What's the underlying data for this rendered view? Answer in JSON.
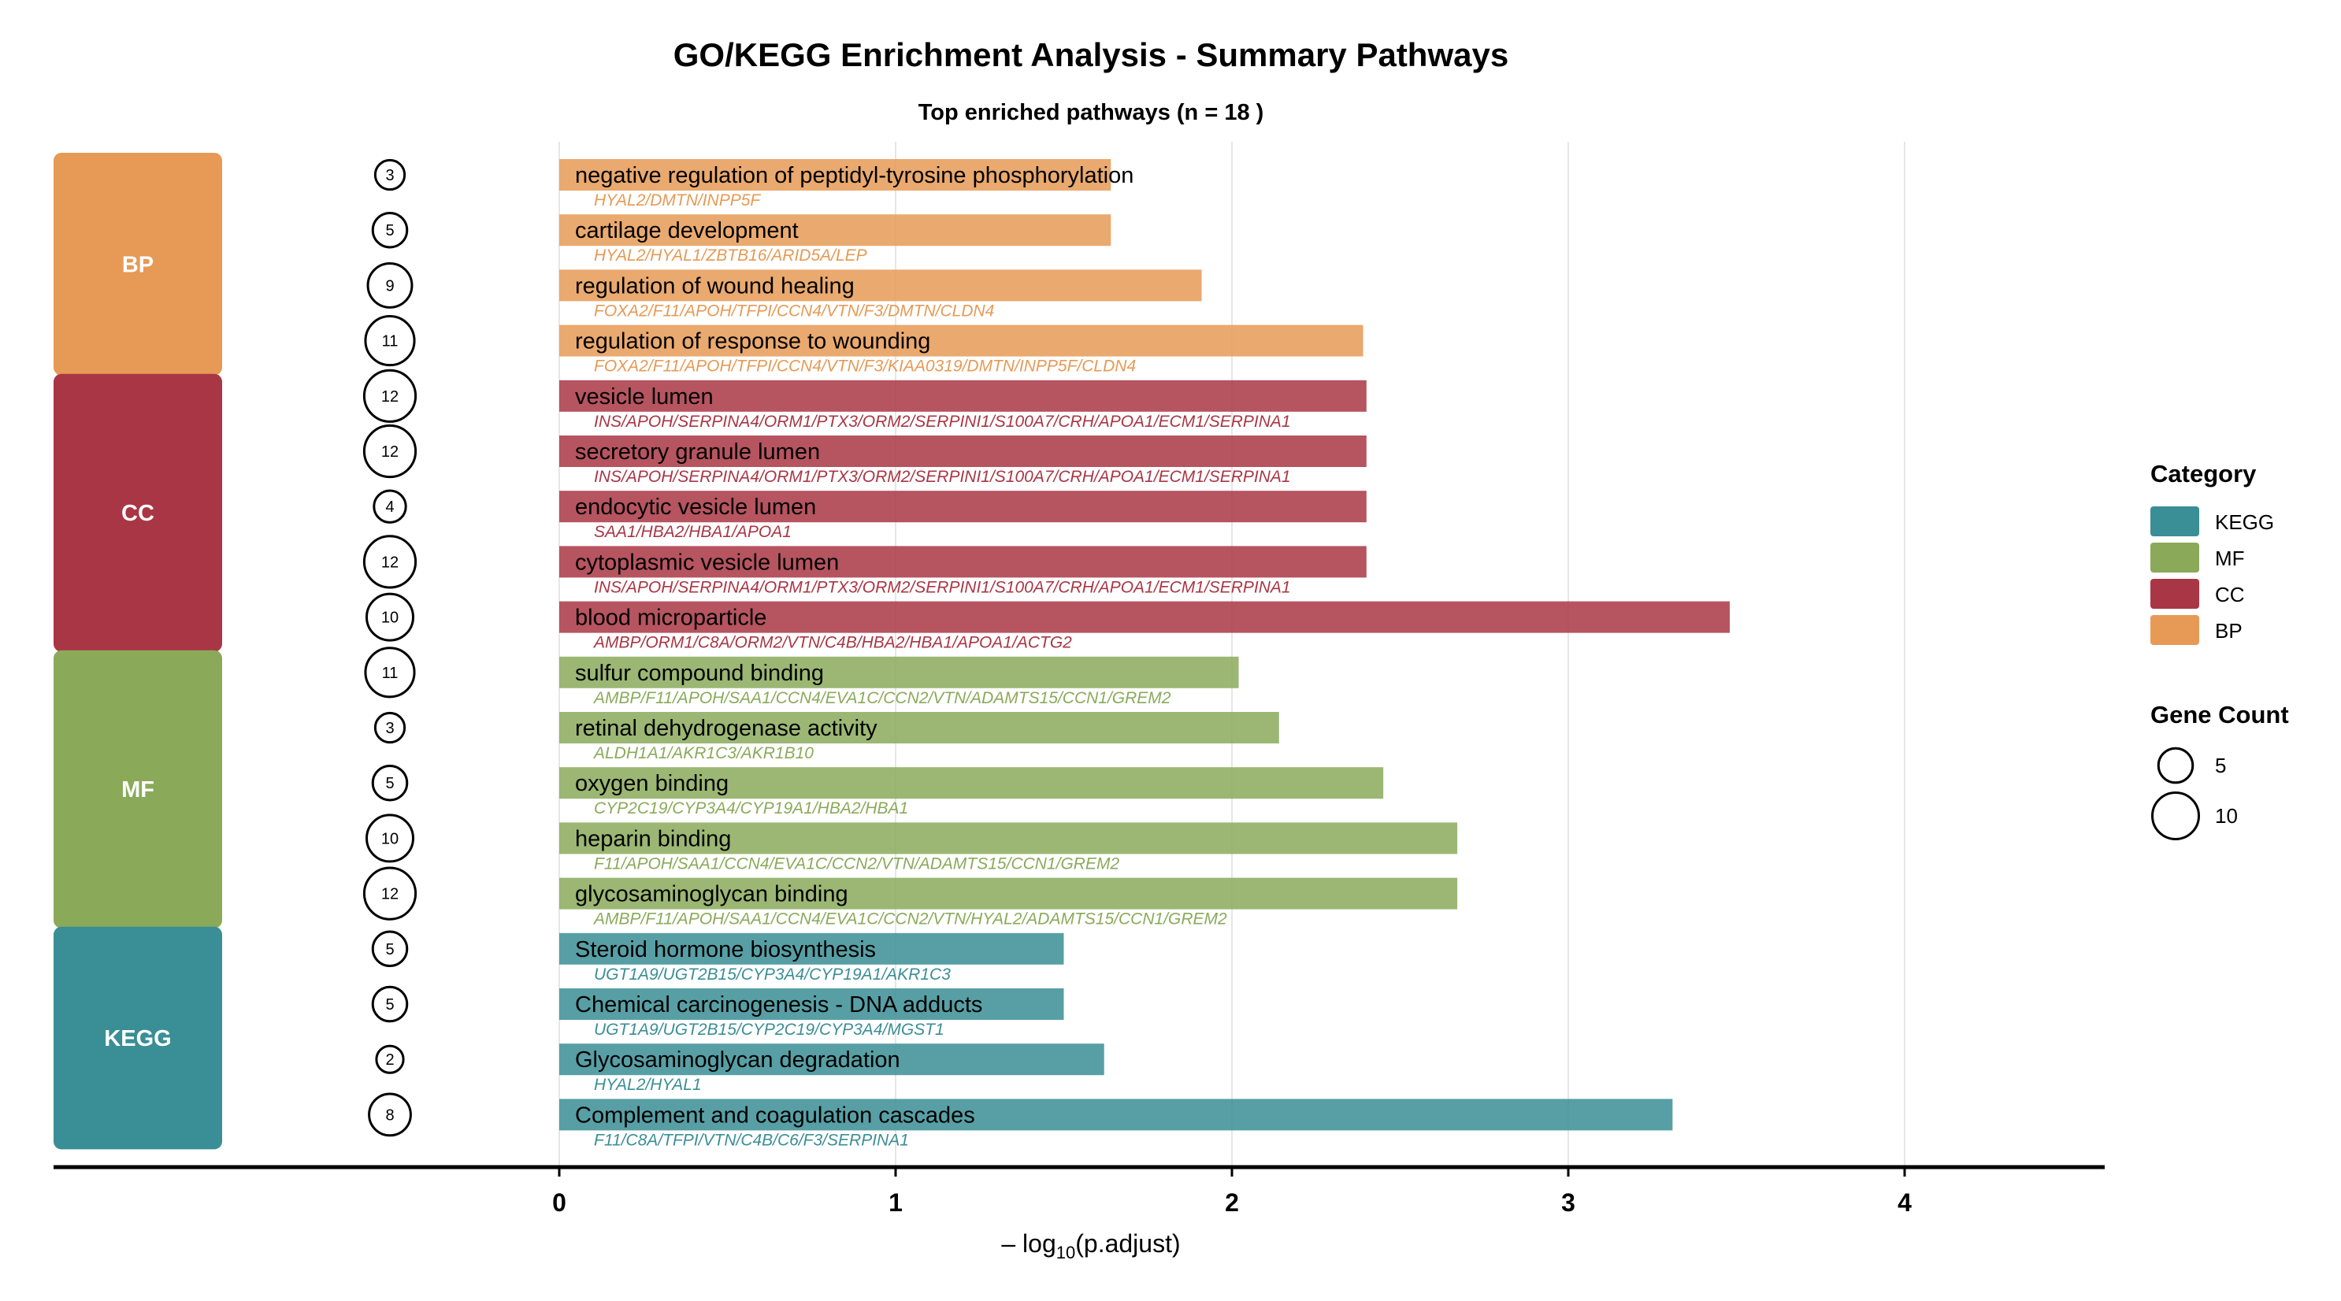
{
  "chart_data": {
    "type": "bar",
    "orientation": "horizontal",
    "title": "GO/KEGG Enrichment Analysis - Summary Pathways",
    "subtitle": "Top enriched pathways (n = 18 )",
    "xlabel_prefix": "– log",
    "xlabel_sub": "10",
    "xlabel_suffix": "(p.adjust)",
    "xlim": [
      0,
      4.5
    ],
    "xticks": [
      "0",
      "1",
      "2",
      "3",
      "4"
    ],
    "grid": true,
    "colors": {
      "KEGG": "#3a8e95",
      "MF": "#8aaa5a",
      "CC": "#a93644",
      "BP": "#e69a55"
    },
    "categories": [
      {
        "name": "BP"
      },
      {
        "name": "CC"
      },
      {
        "name": "MF"
      },
      {
        "name": "KEGG"
      }
    ],
    "pathways": [
      {
        "label": "negative regulation of peptidyl-tyrosine phosphorylation",
        "value": 1.64,
        "count": 3,
        "genes": "HYAL2/DMTN/INPP5F",
        "category": "BP"
      },
      {
        "label": "cartilage development",
        "value": 1.64,
        "count": 5,
        "genes": "HYAL2/HYAL1/ZBTB16/ARID5A/LEP",
        "category": "BP"
      },
      {
        "label": "regulation of wound healing",
        "value": 1.91,
        "count": 9,
        "genes": "FOXA2/F11/APOH/TFPI/CCN4/VTN/F3/DMTN/CLDN4",
        "category": "BP"
      },
      {
        "label": "regulation of response to wounding",
        "value": 2.39,
        "count": 11,
        "genes": "FOXA2/F11/APOH/TFPI/CCN4/VTN/F3/KIAA0319/DMTN/INPP5F/CLDN4",
        "category": "BP"
      },
      {
        "label": "vesicle lumen",
        "value": 2.4,
        "count": 12,
        "genes": "INS/APOH/SERPINA4/ORM1/PTX3/ORM2/SERPINI1/S100A7/CRH/APOA1/ECM1/SERPINA1",
        "category": "CC"
      },
      {
        "label": "secretory granule lumen",
        "value": 2.4,
        "count": 12,
        "genes": "INS/APOH/SERPINA4/ORM1/PTX3/ORM2/SERPINI1/S100A7/CRH/APOA1/ECM1/SERPINA1",
        "category": "CC"
      },
      {
        "label": "endocytic vesicle lumen",
        "value": 2.4,
        "count": 4,
        "genes": "SAA1/HBA2/HBA1/APOA1",
        "category": "CC"
      },
      {
        "label": "cytoplasmic vesicle lumen",
        "value": 2.4,
        "count": 12,
        "genes": "INS/APOH/SERPINA4/ORM1/PTX3/ORM2/SERPINI1/S100A7/CRH/APOA1/ECM1/SERPINA1",
        "category": "CC"
      },
      {
        "label": "blood microparticle",
        "value": 3.48,
        "count": 10,
        "genes": "AMBP/ORM1/C8A/ORM2/VTN/C4B/HBA2/HBA1/APOA1/ACTG2",
        "category": "CC"
      },
      {
        "label": "sulfur compound binding",
        "value": 2.02,
        "count": 11,
        "genes": "AMBP/F11/APOH/SAA1/CCN4/EVA1C/CCN2/VTN/ADAMTS15/CCN1/GREM2",
        "category": "MF"
      },
      {
        "label": "retinal dehydrogenase activity",
        "value": 2.14,
        "count": 3,
        "genes": "ALDH1A1/AKR1C3/AKR1B10",
        "category": "MF"
      },
      {
        "label": "oxygen binding",
        "value": 2.45,
        "count": 5,
        "genes": "CYP2C19/CYP3A4/CYP19A1/HBA2/HBA1",
        "category": "MF"
      },
      {
        "label": "heparin binding",
        "value": 2.67,
        "count": 10,
        "genes": "F11/APOH/SAA1/CCN4/EVA1C/CCN2/VTN/ADAMTS15/CCN1/GREM2",
        "category": "MF"
      },
      {
        "label": "glycosaminoglycan binding",
        "value": 2.67,
        "count": 12,
        "genes": "AMBP/F11/APOH/SAA1/CCN4/EVA1C/CCN2/VTN/HYAL2/ADAMTS15/CCN1/GREM2",
        "category": "MF"
      },
      {
        "label": "Steroid hormone biosynthesis",
        "value": 1.5,
        "count": 5,
        "genes": "UGT1A9/UGT2B15/CYP3A4/CYP19A1/AKR1C3",
        "category": "KEGG"
      },
      {
        "label": "Chemical carcinogenesis - DNA adducts",
        "value": 1.5,
        "count": 5,
        "genes": "UGT1A9/UGT2B15/CYP2C19/CYP3A4/MGST1",
        "category": "KEGG"
      },
      {
        "label": "Glycosaminoglycan degradation",
        "value": 1.62,
        "count": 2,
        "genes": "HYAL2/HYAL1",
        "category": "KEGG"
      },
      {
        "label": "Complement and coagulation cascades",
        "value": 3.31,
        "count": 8,
        "genes": "F11/C8A/TFPI/VTN/C4B/C6/F3/SERPINA1",
        "category": "KEGG"
      }
    ],
    "legend": {
      "category_title": "Category",
      "category_items": [
        "KEGG",
        "MF",
        "CC",
        "BP"
      ],
      "count_title": "Gene Count",
      "count_items": [
        5,
        10
      ],
      "placement": "right"
    }
  }
}
